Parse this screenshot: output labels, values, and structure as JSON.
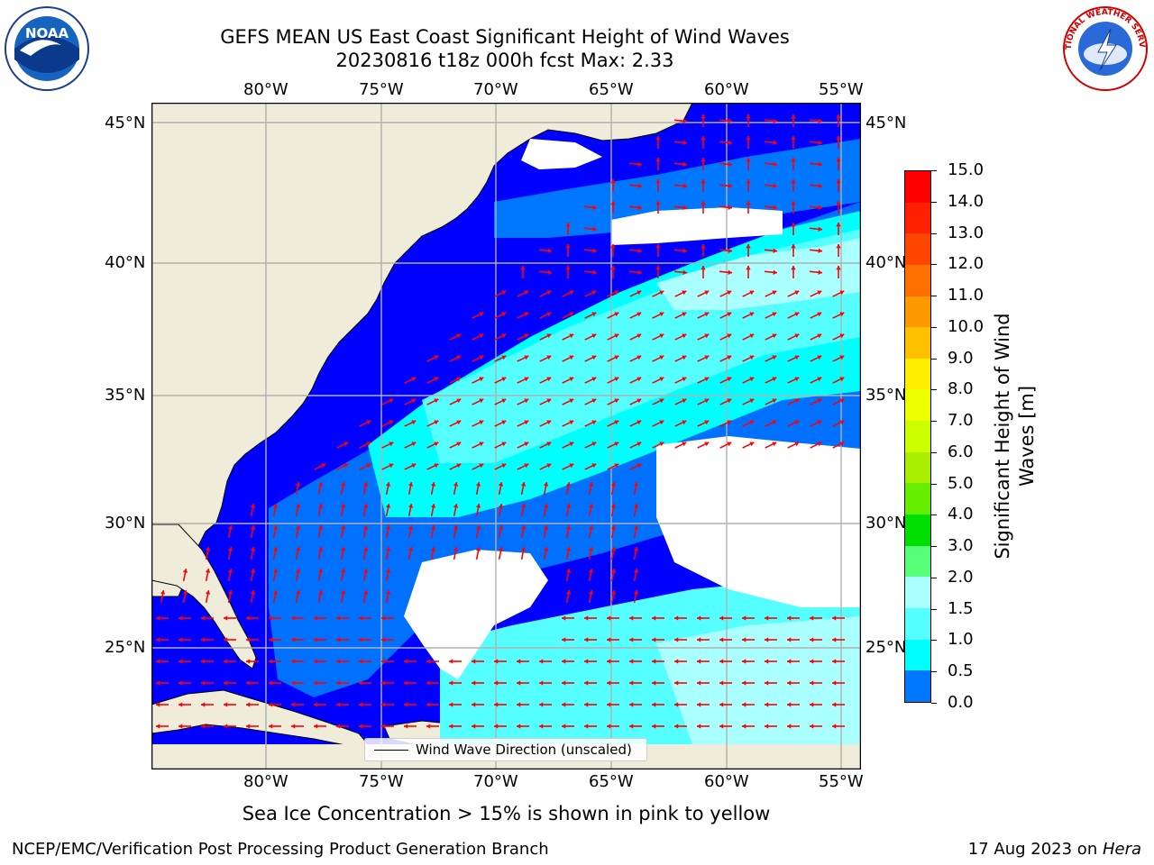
{
  "title": {
    "line1": "GEFS MEAN US East Coast Significant Height of Wind Waves",
    "line2": "20230816 t18z 000h fcst   Max: 2.33"
  },
  "logos": {
    "left": {
      "name": "noaa-logo-icon",
      "text": "NOAA"
    },
    "right": {
      "name": "nws-logo-icon",
      "text": "NATIONAL WEATHER SERVICE"
    }
  },
  "map": {
    "lon_labels": [
      "80°W",
      "75°W",
      "70°W",
      "65°W",
      "60°W",
      "55°W"
    ],
    "lat_labels": [
      "45°N",
      "40°N",
      "35°N",
      "30°N",
      "25°N"
    ],
    "legend_label": "Wind Wave Direction (unscaled)",
    "colors": {
      "land": "#efecd9",
      "no_data": "#ffffff",
      "arrow": "#ff0000",
      "grid": "#b0b0b0"
    }
  },
  "colorbar": {
    "label": "Significant Height of Wind Waves [m]",
    "label_line1": "Significant Height of Wind",
    "label_line2": "Waves [m]",
    "ticks": [
      "15.0",
      "14.0",
      "13.0",
      "12.0",
      "11.0",
      "10.0",
      "9.0",
      "8.0",
      "7.0",
      "6.0",
      "5.0",
      "4.0",
      "3.0",
      "2.0",
      "1.5",
      "1.0",
      "0.5",
      "0.0"
    ],
    "colors": [
      "#ff0000",
      "#ff2000",
      "#ff4500",
      "#ff7000",
      "#ff9900",
      "#ffc000",
      "#ffee00",
      "#eeff00",
      "#ccff00",
      "#aaee00",
      "#66ee00",
      "#00dd00",
      "#55ff77",
      "#aaffff",
      "#55ffff",
      "#00ffff",
      "#0077ff",
      "#0000ff"
    ]
  },
  "subtitle": "Sea Ice Concentration > 15% is shown in pink to yellow",
  "footer": {
    "left": "NCEP/EMC/Verification Post Processing Product Generation Branch",
    "right_prefix": "17 Aug 2023 on ",
    "right_machine": "Hera"
  }
}
